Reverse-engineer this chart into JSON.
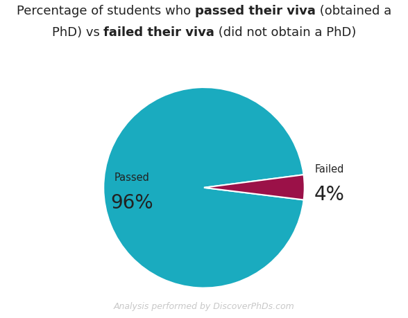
{
  "slices": [
    96,
    4
  ],
  "labels": [
    "Passed",
    "Failed"
  ],
  "colors": [
    "#1AABBF",
    "#9B1148"
  ],
  "pct_labels": [
    "96%",
    "4%"
  ],
  "watermark": "Analysis performed by DiscoverPhDs.com",
  "background_color": "#ffffff",
  "startangle": -7,
  "label_fontsize": 10.5,
  "pct_fontsize": 20,
  "title_fontsize": 13,
  "title_color": "#222222",
  "watermark_color": "#c8c8c8",
  "edge_color": "#ffffff",
  "line1_parts": [
    [
      "Percentage of students who ",
      false
    ],
    [
      "passed their viva",
      true
    ],
    [
      " (obtained a",
      false
    ]
  ],
  "line2_parts": [
    [
      "PhD) vs ",
      false
    ],
    [
      "failed their viva",
      true
    ],
    [
      " (did not obtain a PhD)",
      false
    ]
  ]
}
